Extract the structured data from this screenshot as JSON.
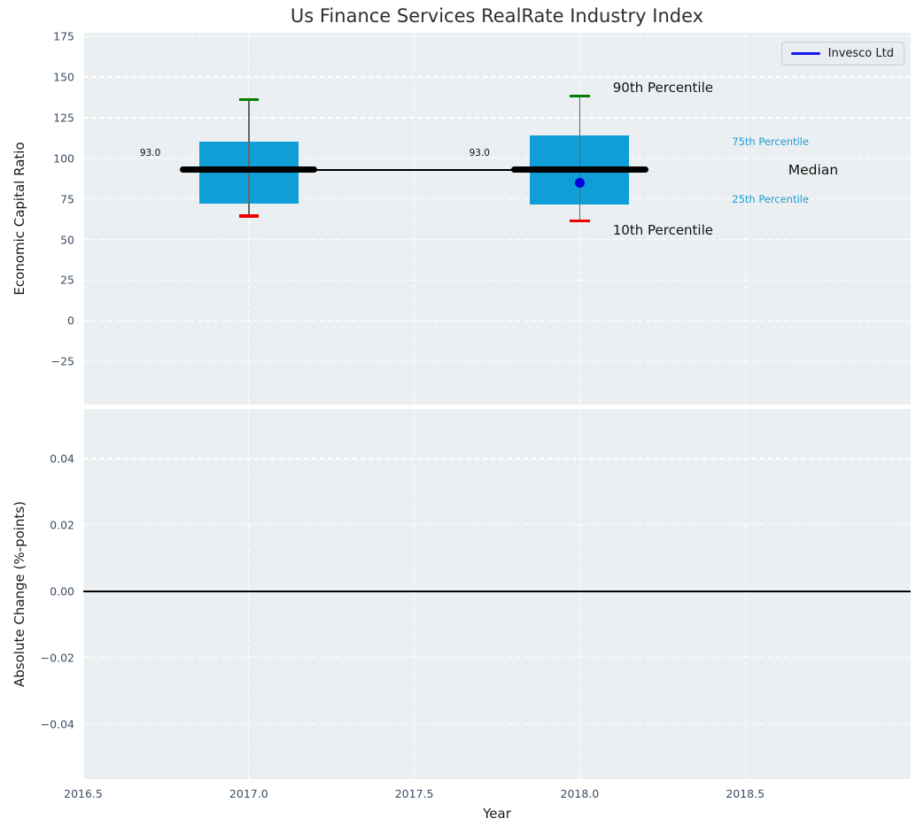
{
  "figure": {
    "title": "Us Finance Services RealRate Industry Index"
  },
  "legend": {
    "label": "Invesco Ltd"
  },
  "xaxis": {
    "label": "Year",
    "tick_values": [
      2016.5,
      2017.0,
      2017.5,
      2018.0,
      2018.5
    ],
    "tick_labels": [
      "2016.5",
      "2017.0",
      "2017.5",
      "2018.0",
      "2018.5"
    ]
  },
  "chart_data": [
    {
      "type": "boxplot",
      "ylabel": "Economic Capital Ratio",
      "ylim": [
        -51.6,
        177.3
      ],
      "xlim": [
        2016.5,
        2019.0
      ],
      "ytick_values": [
        175,
        150,
        125,
        100,
        75,
        50,
        25,
        0,
        -25
      ],
      "ytick_labels": [
        "175",
        "150",
        "125",
        "100",
        "75",
        "50",
        "25",
        "0",
        "−25"
      ],
      "grid": "white-dashed",
      "box_width_years": 0.3,
      "median_bar_halfwidth_years": 0.207,
      "cap_halfwidth_years": 0.03,
      "boxes": [
        {
          "year": 2017,
          "p90": 136,
          "p75": 110,
          "median": 93,
          "p25": 72,
          "p10": 64.5
        },
        {
          "year": 2018,
          "p90": 138.5,
          "p75": 114,
          "median": 93,
          "p25": 71.5,
          "p10": 61.5
        }
      ],
      "median_connector": {
        "from_year": 2017,
        "to_year": 2018,
        "value": 93
      },
      "series_points": [
        {
          "name": "Invesco Ltd",
          "year": 2018,
          "value": 85
        }
      ],
      "annotations": [
        {
          "text": "90th Percentile",
          "year": 2018.1,
          "value": 143.5,
          "size": 15,
          "color": "#111111"
        },
        {
          "text": "10th Percentile",
          "year": 2018.1,
          "value": 55.8,
          "size": 15,
          "color": "#111111"
        },
        {
          "text": "75th Percentile",
          "year": 2018.46,
          "value": 110.3,
          "size": 11.5,
          "color": "#1a9ed3"
        },
        {
          "text": "Median",
          "year": 2018.63,
          "value": 92.6,
          "size": 15.5,
          "color": "#111111"
        },
        {
          "text": "25th Percentile",
          "year": 2018.46,
          "value": 74.8,
          "size": 11.5,
          "color": "#1a9ed3"
        },
        {
          "text": "93.0",
          "year": 2016.671,
          "value": 103.2,
          "size": 10.5,
          "color": "#111111"
        },
        {
          "text": "93.0",
          "year": 2017.666,
          "value": 103.2,
          "size": 10.5,
          "color": "#111111"
        }
      ]
    },
    {
      "type": "line",
      "ylabel": "Absolute Change (%-points)",
      "ylim": [
        -0.0566,
        0.0549
      ],
      "ytick_values": [
        0.04,
        0.02,
        0,
        -0.02,
        -0.04
      ],
      "ytick_labels": [
        "0.04",
        "0.02",
        "0.00",
        "−0.02",
        "−0.04"
      ],
      "grid": "white-dashed",
      "zero_line_value": 0
    }
  ],
  "colors": {
    "plot_background": "#ebeff1",
    "grid": "#ffffff",
    "box_fill": "#0f9ed8",
    "median_line": "#000000",
    "whisker": "#666666",
    "cap_90th": "#008000",
    "cap_10th": "#ee0000",
    "point": "#0000dd",
    "legend_line": "#1515f0",
    "tick_text": "#3b4d63",
    "zero_line": "#000000"
  }
}
